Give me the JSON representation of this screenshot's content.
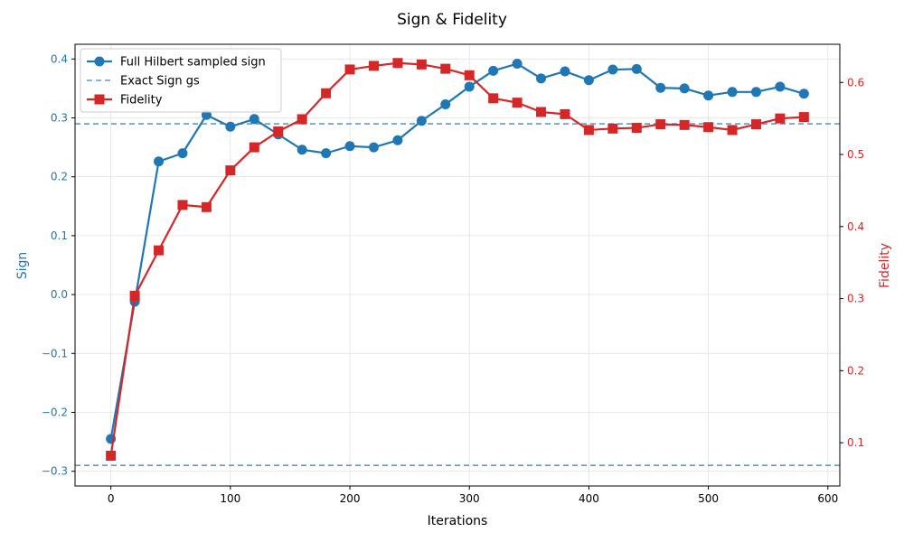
{
  "chart_data": {
    "type": "line",
    "title": "Sign & Fidelity",
    "xlabel": "Iterations",
    "ylabel_left": "Sign",
    "ylabel_right": "Fidelity",
    "xlim": [
      -30,
      610
    ],
    "ylim_left": [
      -0.325,
      0.425
    ],
    "ylim_right": [
      0.04,
      0.653
    ],
    "x_ticks": [
      0,
      100,
      200,
      300,
      400,
      500,
      600
    ],
    "x_tick_labels": [
      "0",
      "100",
      "200",
      "300",
      "400",
      "500",
      "600"
    ],
    "y_left_ticks": [
      -0.3,
      -0.2,
      -0.1,
      0.0,
      0.1,
      0.2,
      0.3,
      0.4
    ],
    "y_left_tick_labels": [
      "−0.3",
      "−0.2",
      "−0.1",
      "0.0",
      "0.1",
      "0.2",
      "0.3",
      "0.4"
    ],
    "y_right_ticks": [
      0.1,
      0.2,
      0.3,
      0.4,
      0.5,
      0.6
    ],
    "y_right_tick_labels": [
      "0.1",
      "0.2",
      "0.3",
      "0.4",
      "0.5",
      "0.6"
    ],
    "grid": true,
    "legend_position": "top-left",
    "legend": [
      "Full Hilbert sampled sign",
      "Exact Sign gs",
      "Fidelity"
    ],
    "colors": {
      "sign": "#1f77b4",
      "fidelity": "#d62728",
      "exact": "#5b9bd5"
    },
    "x": [
      0,
      20,
      40,
      60,
      80,
      100,
      120,
      140,
      160,
      180,
      200,
      220,
      240,
      260,
      280,
      300,
      320,
      340,
      360,
      380,
      400,
      420,
      440,
      460,
      480,
      500,
      520,
      540,
      560,
      580
    ],
    "series": [
      {
        "name": "Full Hilbert sampled sign",
        "axis": "left",
        "marker": "circle",
        "values": [
          -0.245,
          -0.012,
          0.226,
          0.24,
          0.305,
          0.285,
          0.298,
          0.272,
          0.246,
          0.24,
          0.252,
          0.25,
          0.262,
          0.295,
          0.323,
          0.353,
          0.38,
          0.392,
          0.367,
          0.379,
          0.364,
          0.382,
          0.383,
          0.351,
          0.35,
          0.338,
          0.344,
          0.344,
          0.353,
          0.341
        ]
      },
      {
        "name": "Fidelity",
        "axis": "right",
        "marker": "square",
        "values": [
          0.082,
          0.304,
          0.367,
          0.43,
          0.427,
          0.478,
          0.51,
          0.532,
          0.549,
          0.585,
          0.618,
          0.623,
          0.627,
          0.625,
          0.619,
          0.61,
          0.578,
          0.572,
          0.559,
          0.556,
          0.534,
          0.536,
          0.537,
          0.542,
          0.541,
          0.538,
          0.534,
          0.542,
          0.55,
          0.552
        ]
      }
    ],
    "reference_lines": [
      {
        "name": "Exact Sign gs",
        "axis": "left",
        "y": 0.29
      },
      {
        "axis": "left",
        "y": -0.29
      }
    ]
  }
}
